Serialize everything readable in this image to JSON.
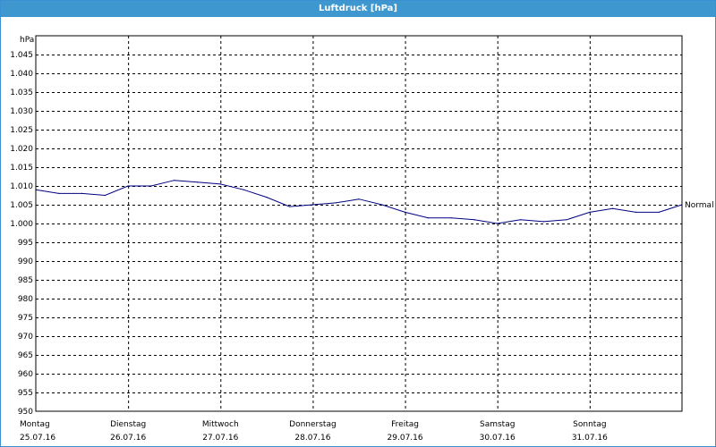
{
  "window": {
    "title": "Luftdruck [hPa]"
  },
  "chart_data": {
    "type": "line",
    "title": "Luftdruck [hPa]",
    "ylabel": "hPa",
    "ylim": [
      950,
      1050
    ],
    "yticks": [
      "1.045",
      "1.040",
      "1.035",
      "1.030",
      "1.025",
      "1.020",
      "1.015",
      "1.010",
      "1.005",
      "1.000",
      "995",
      "990",
      "985",
      "980",
      "975",
      "970",
      "965",
      "960",
      "955",
      "950"
    ],
    "ytick_values": [
      1045,
      1040,
      1035,
      1030,
      1025,
      1020,
      1015,
      1010,
      1005,
      1000,
      995,
      990,
      985,
      980,
      975,
      970,
      965,
      960,
      955,
      950
    ],
    "xlim": [
      0,
      7
    ],
    "xticks": [
      {
        "day": "Montag",
        "date": "25.07.16"
      },
      {
        "day": "Dienstag",
        "date": "26.07.16"
      },
      {
        "day": "Mittwoch",
        "date": "27.07.16"
      },
      {
        "day": "Donnerstag",
        "date": "28.07.16"
      },
      {
        "day": "Freitag",
        "date": "29.07.16"
      },
      {
        "day": "Samstag",
        "date": "30.07.16"
      },
      {
        "day": "Sonntag",
        "date": "31.07.16"
      }
    ],
    "grid": true,
    "series": [
      {
        "name": "Normal",
        "color": "#000080",
        "x": [
          0,
          0.25,
          0.5,
          0.75,
          1.0,
          1.25,
          1.5,
          1.75,
          2.0,
          2.25,
          2.5,
          2.75,
          3.0,
          3.25,
          3.5,
          3.75,
          4.0,
          4.25,
          4.5,
          4.75,
          5.0,
          5.25,
          5.5,
          5.75,
          6.0,
          6.25,
          6.5,
          6.75,
          7.0
        ],
        "y": [
          1009,
          1008,
          1008,
          1007.5,
          1010,
          1010,
          1011.5,
          1011,
          1010.5,
          1009,
          1007,
          1004.5,
          1005,
          1005.5,
          1006.5,
          1005,
          1003,
          1001.5,
          1001.5,
          1001,
          1000,
          1001,
          1000.5,
          1001,
          1003,
          1004,
          1003,
          1003,
          1005
        ]
      }
    ]
  }
}
